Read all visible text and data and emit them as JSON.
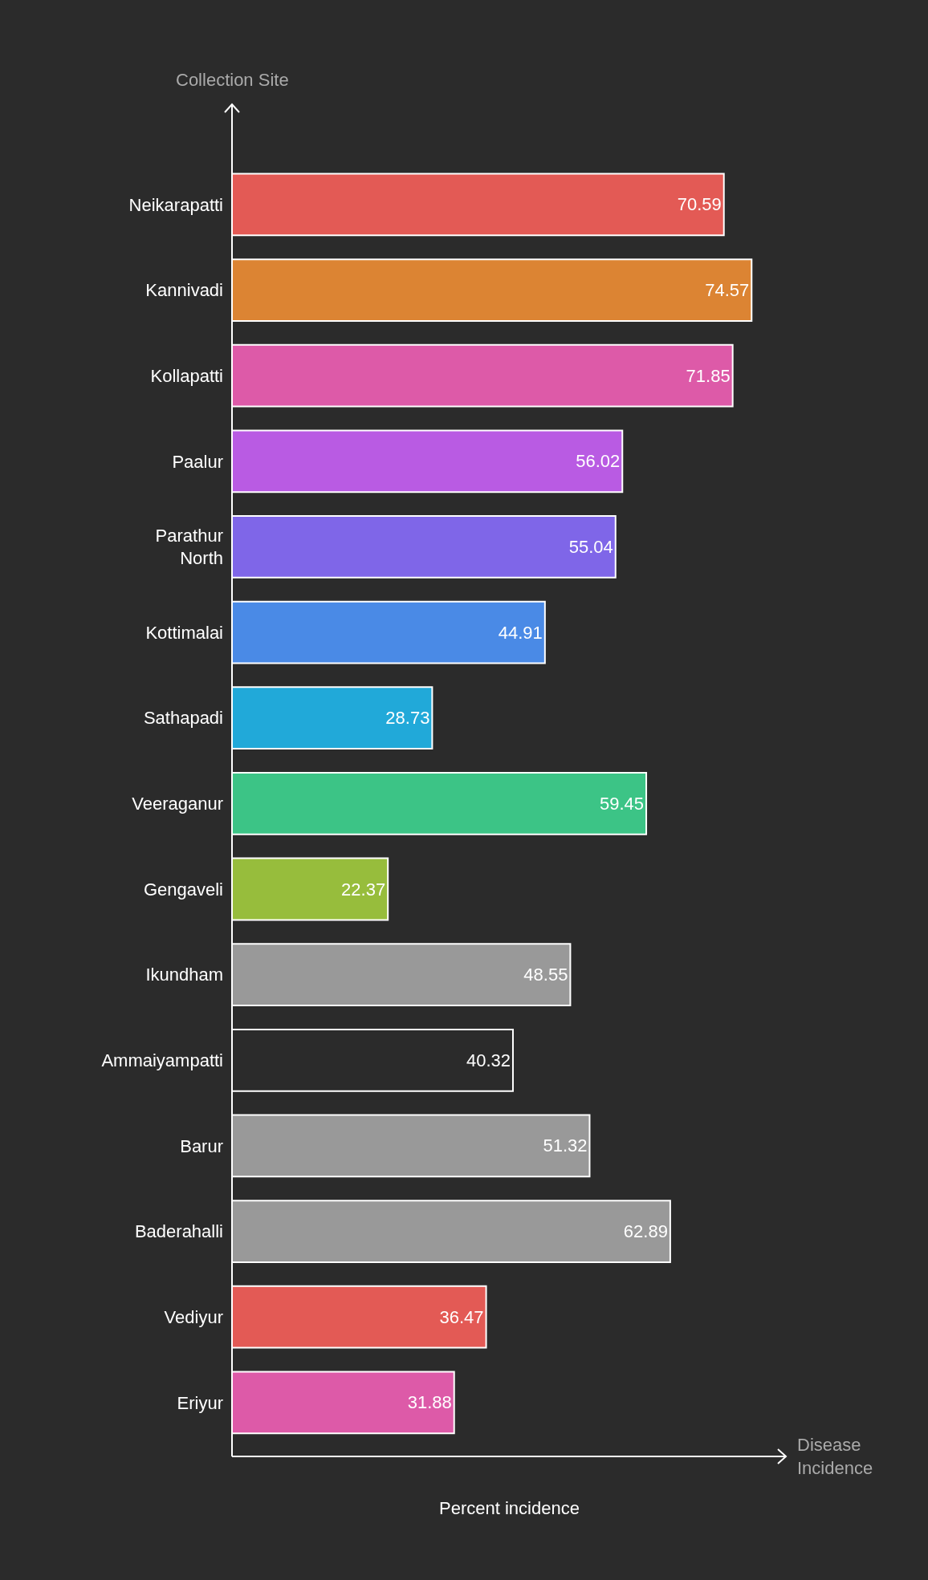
{
  "chart_data": {
    "type": "bar",
    "orientation": "horizontal",
    "ylabel": "Collection Site",
    "xlabel": "Disease Incidence",
    "annotations": [
      "Percent incidence"
    ],
    "categories": [
      "Neikarapatti",
      "Kannivadi",
      "Kollapatti",
      "Paalur",
      "Parathur North",
      "Kottimalai",
      "Sathapadi",
      "Veeraganur",
      "Gengaveli",
      "Ikundham",
      "Ammaiyampatti",
      "Barur",
      "Baderahalli",
      "Vediyur",
      "Eriyur"
    ],
    "values": [
      70.59,
      74.57,
      71.85,
      56.02,
      55.04,
      44.91,
      28.73,
      59.45,
      22.37,
      48.55,
      40.32,
      51.32,
      62.89,
      36.47,
      31.88
    ],
    "colors": [
      "#e35a55",
      "#dc8433",
      "#dd5aa8",
      "#b95be3",
      "#7f66e8",
      "#4a8ae6",
      "#21a9d9",
      "#3cc486",
      "#97bd3c",
      "#999999",
      "#2b2b2b",
      "#999999",
      "#999999",
      "#e35a55",
      "#dd5aa8"
    ],
    "data_labels": true,
    "grid": false,
    "legend": false,
    "tick_labels": "y"
  }
}
